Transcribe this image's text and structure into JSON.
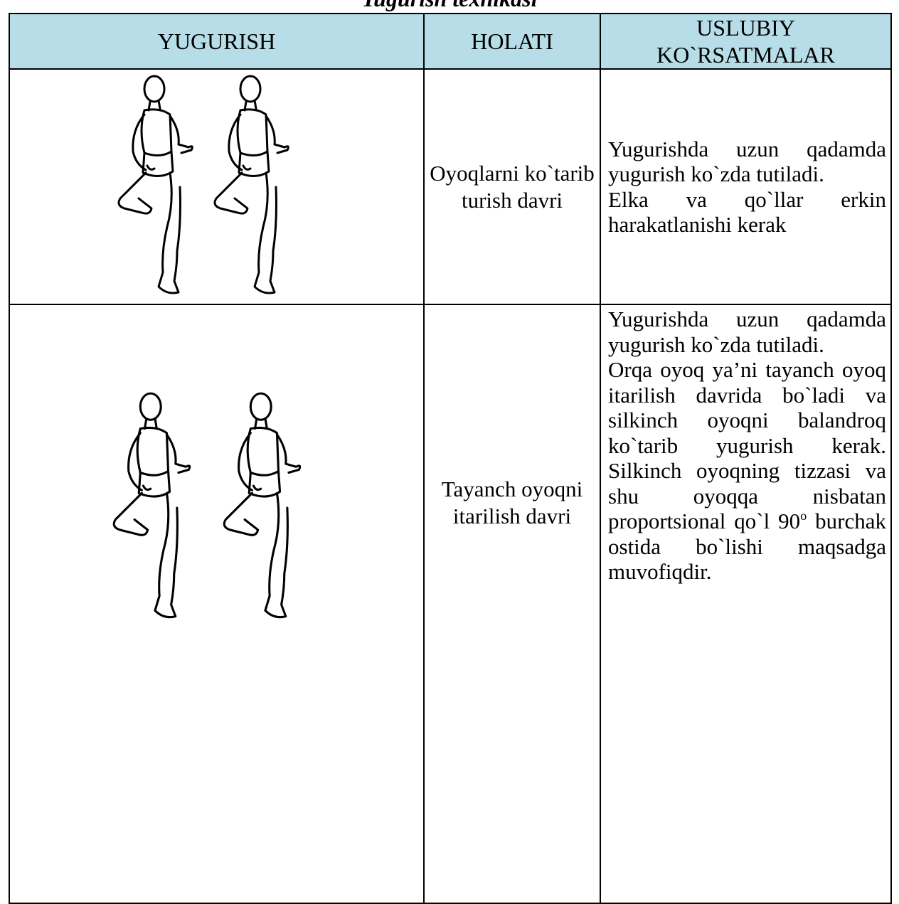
{
  "title": "Yugurish texnikasi",
  "table": {
    "headers": [
      "YUGURISH",
      "HOLATI",
      "USLUBIY KO`RSATMALAR"
    ],
    "rows": [
      {
        "holati": "Oyoqlarni ko`tarib turish davri",
        "paragraphs": [
          "Yugurishda uzun qadamda yugurish ko`zda tutiladi.",
          "Elka va qo`llar erkin harakatlanishi kerak"
        ]
      },
      {
        "holati": "Tayanch oyoqni itarilish davri",
        "paragraphs": [
          "Yugurishda uzun qadamda yugurish ko`zda tutiladi.",
          [
            "Orqa oyoq ya’ni tayanch oyoq itarilish davrida bo`ladi va silkinch oyoqni balandroq ko`tarib yugurish kerak. Silkinch oyoqning tizzasi va shu oyoqqa nisbatan proportsional qo`l 90",
            "o",
            " burchak ostida bo`lishi maqsadga muvofiqdir."
          ]
        ]
      }
    ]
  }
}
